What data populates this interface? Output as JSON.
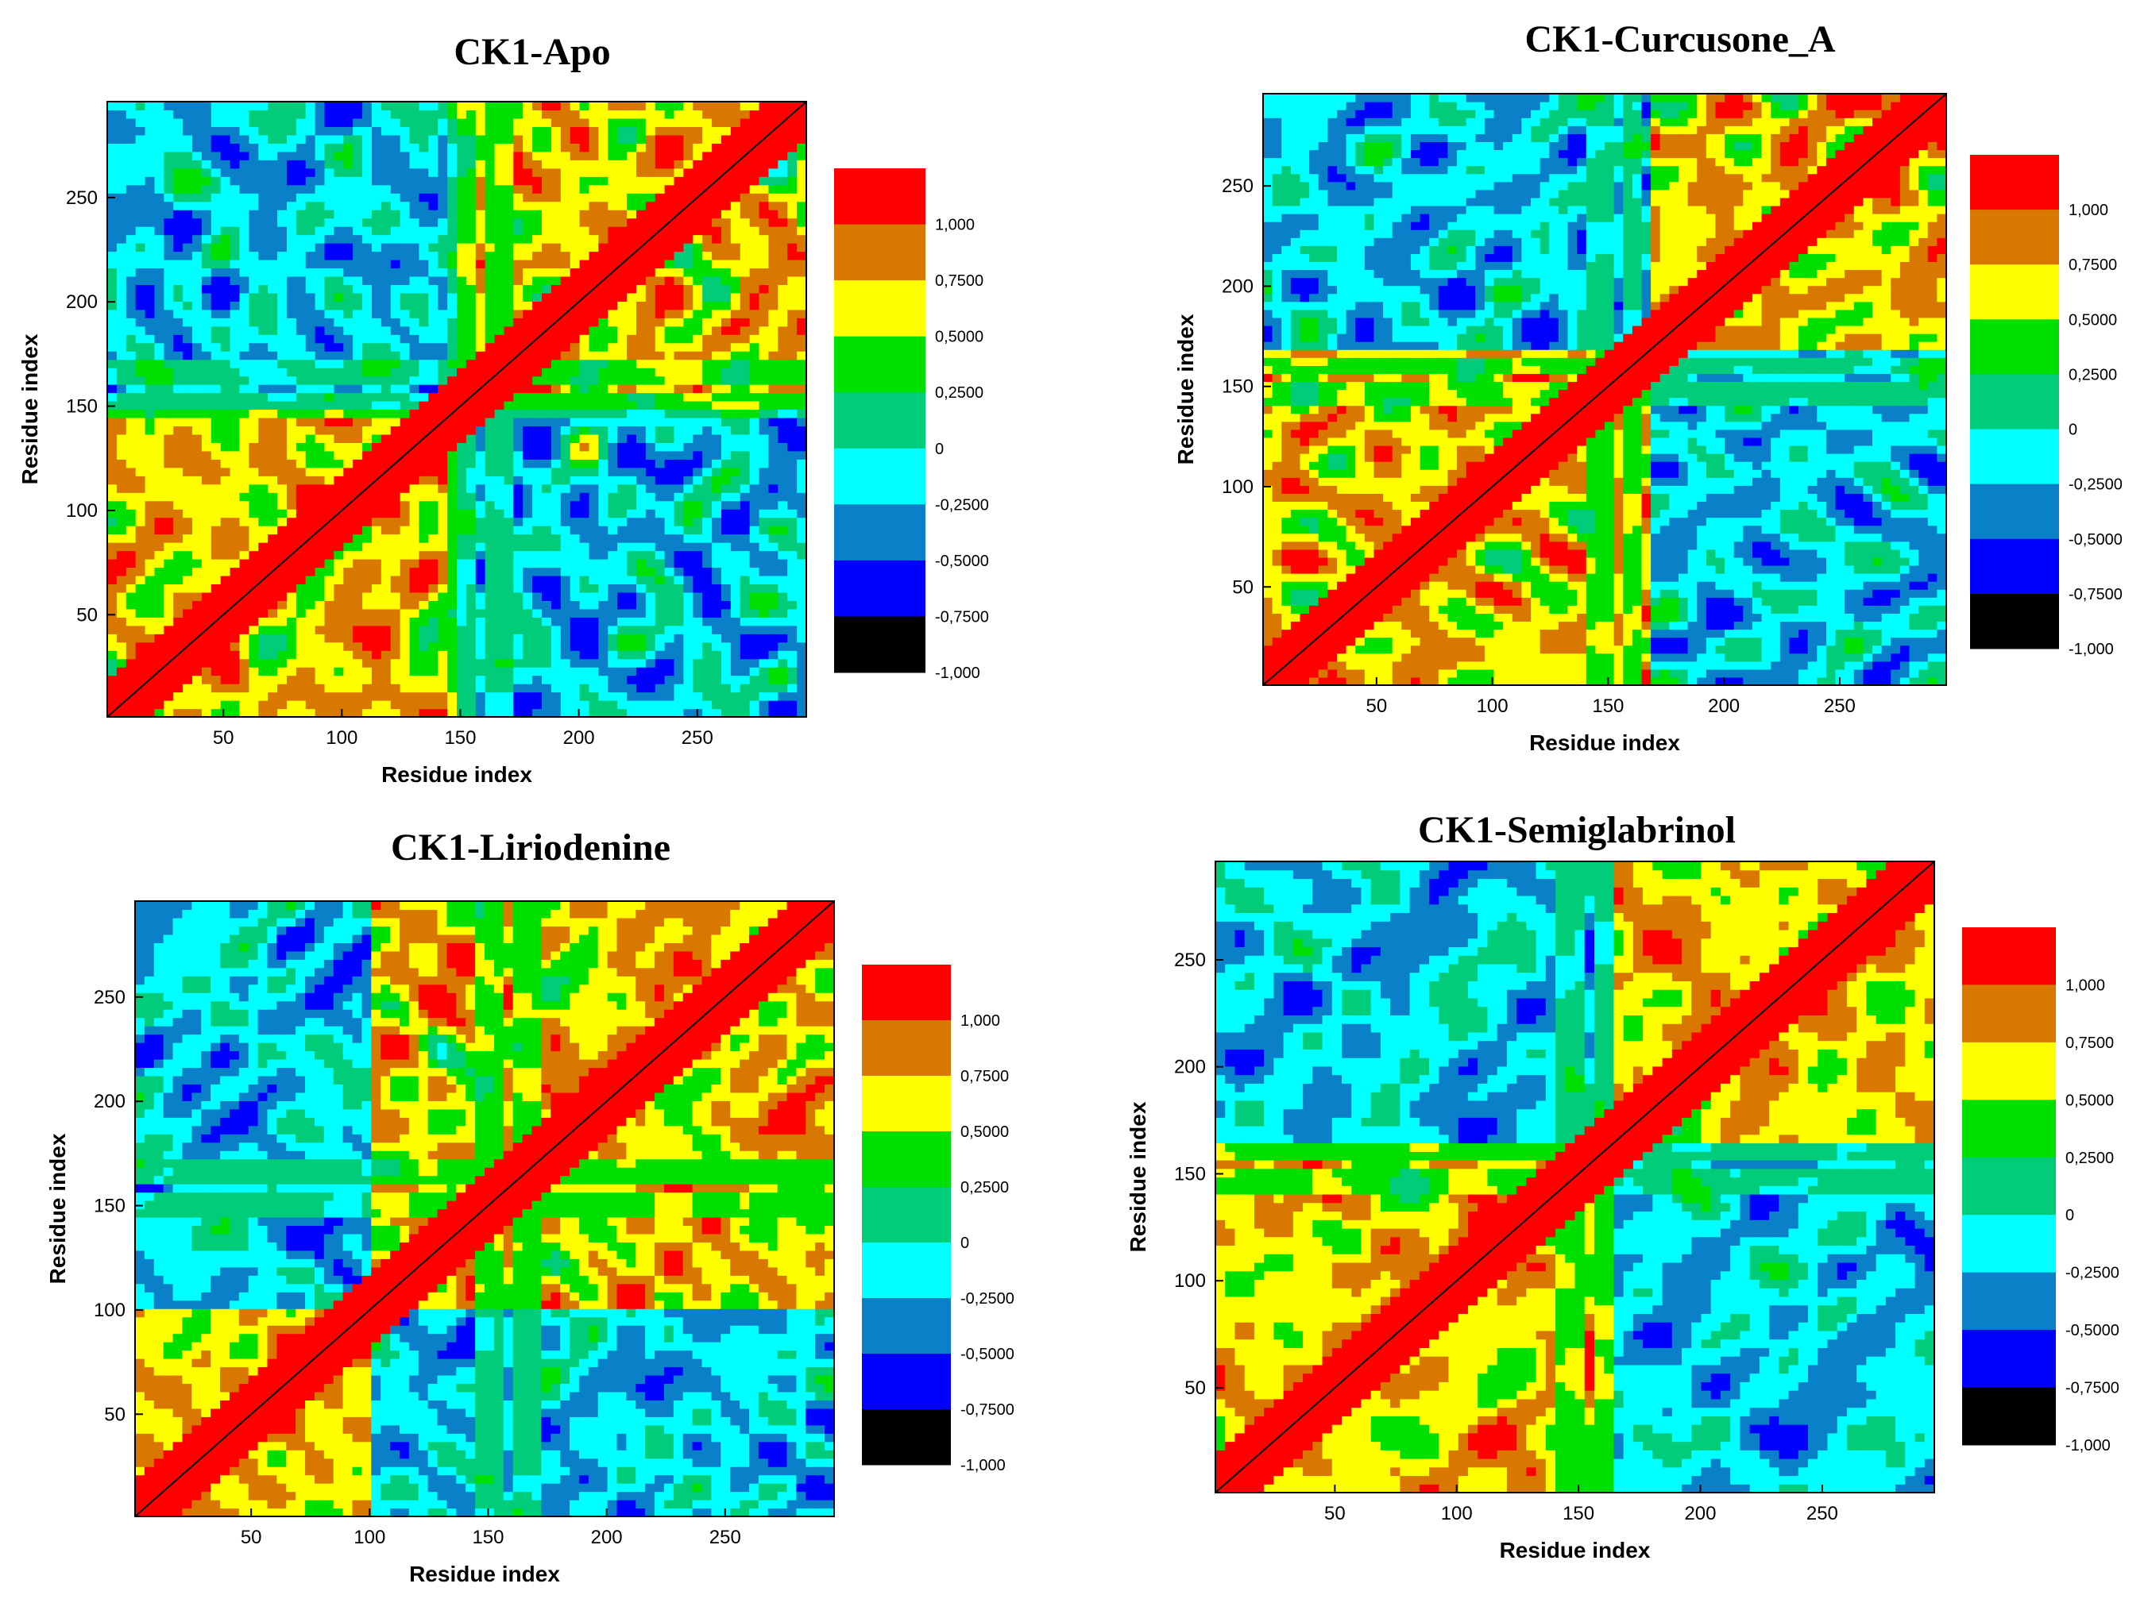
{
  "levels": [
    {
      "label": "1,000",
      "color": "#ff0000"
    },
    {
      "label": "0,7500",
      "color": "#d97800"
    },
    {
      "label": "0,5000",
      "color": "#ffff00"
    },
    {
      "label": "0,2500",
      "color": "#00e000"
    },
    {
      "label": "0",
      "color": "#00cc7a"
    },
    {
      "label": "-0,2500",
      "color": "#00ffff"
    },
    {
      "label": "-0,5000",
      "color": "#0a80c8"
    },
    {
      "label": "-0,7500",
      "color": "#0000ff"
    },
    {
      "label": "-1,000",
      "color": "#000000"
    }
  ],
  "chart_data": [
    {
      "type": "heatmap",
      "title": "CK1-Apo",
      "xlabel": "Residue index",
      "ylabel": "Residue index",
      "xlim": [
        1,
        296
      ],
      "ylim": [
        1,
        296
      ],
      "xticks": [
        "50",
        "100",
        "150",
        "200",
        "250"
      ],
      "yticks": [
        "50",
        "100",
        "150",
        "200",
        "250"
      ],
      "colorbar": [
        "1,000",
        "0,7500",
        "0,5000",
        "0,2500",
        "0",
        "-0,2500",
        "-0,5000",
        "-0,7500",
        "-1,000"
      ],
      "seed": 7,
      "split": 150,
      "hinges": [
        150,
        165
      ]
    },
    {
      "type": "heatmap",
      "title": "CK1-Curcusone_A",
      "xlabel": "Residue index",
      "ylabel": "Residue index",
      "xlim": [
        1,
        296
      ],
      "ylim": [
        1,
        296
      ],
      "xticks": [
        "50",
        "100",
        "150",
        "200",
        "250"
      ],
      "yticks": [
        "50",
        "100",
        "150",
        "200",
        "250"
      ],
      "colorbar": [
        "1,000",
        "0,7500",
        "0,5000",
        "0,2500",
        "0",
        "-0,2500",
        "-0,5000",
        "-0,7500",
        "-1,000"
      ],
      "seed": 19,
      "split": 170,
      "hinges": [
        145,
        160
      ]
    },
    {
      "type": "heatmap",
      "title": "CK1-Liriodenine",
      "xlabel": "Residue index",
      "ylabel": "Residue index",
      "xlim": [
        1,
        296
      ],
      "ylim": [
        1,
        296
      ],
      "xticks": [
        "50",
        "100",
        "150",
        "200",
        "250"
      ],
      "yticks": [
        "50",
        "100",
        "150",
        "200",
        "250"
      ],
      "colorbar": [
        "1,000",
        "0,7500",
        "0,5000",
        "0,2500",
        "0",
        "-0,2500",
        "-0,5000",
        "-0,7500",
        "-1,000"
      ],
      "seed": 31,
      "split": 100,
      "hinges": [
        150,
        165
      ]
    },
    {
      "type": "heatmap",
      "title": "CK1-Semiglabrinol",
      "xlabel": "Residue index",
      "ylabel": "Residue index",
      "xlim": [
        1,
        296
      ],
      "ylim": [
        1,
        296
      ],
      "xticks": [
        "50",
        "100",
        "150",
        "200",
        "250"
      ],
      "yticks": [
        "50",
        "100",
        "150",
        "200",
        "250"
      ],
      "colorbar": [
        "1,000",
        "0,7500",
        "0,5000",
        "0,2500",
        "0",
        "-0,2500",
        "-0,5000",
        "-0,7500",
        "-1,000"
      ],
      "seed": 43,
      "split": 165,
      "hinges": [
        145,
        160
      ]
    }
  ]
}
